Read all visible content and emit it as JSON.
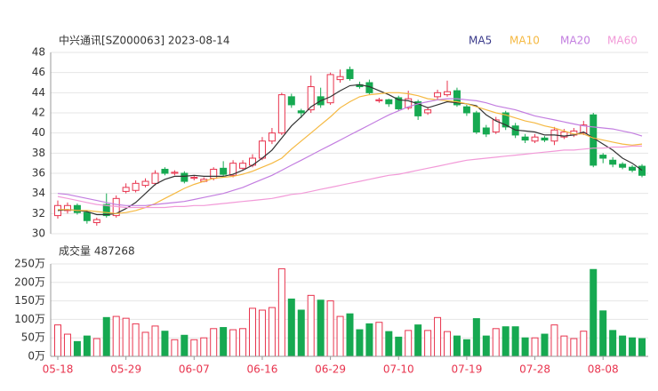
{
  "chart_data": [
    {
      "type": "candlestick",
      "title": "中兴通讯[SZ000063] 2023-08-14",
      "up_color": "#e8344e",
      "down_color": "#16a951",
      "open": [
        31.8,
        32.3,
        32.8,
        32.1,
        31.1,
        32.9,
        31.8,
        34.2,
        34.3,
        34.8,
        35.0,
        36.4,
        36.0,
        36.0,
        35.5,
        35.2,
        35.5,
        36.5,
        35.8,
        36.5,
        36.8,
        37.5,
        39.2,
        40.0,
        43.6,
        42.2,
        42.3,
        43.6,
        43.0,
        45.3,
        46.3,
        44.8,
        45.0,
        43.2,
        43.3,
        43.5,
        42.5,
        43.1,
        42.0,
        43.6,
        43.8,
        44.2,
        42.6,
        42.0,
        40.5,
        40.1,
        42.0,
        40.7,
        39.6,
        39.2,
        39.5,
        39.2,
        39.6,
        39.8,
        40.0,
        41.8,
        37.8,
        37.3,
        36.9,
        36.6,
        36.7
      ],
      "close": [
        32.8,
        32.8,
        32.1,
        31.3,
        31.4,
        31.8,
        33.5,
        34.6,
        35.0,
        35.2,
        36.0,
        36.0,
        36.1,
        35.2,
        35.6,
        35.4,
        36.4,
        35.9,
        37.0,
        37.0,
        37.5,
        39.2,
        40.0,
        43.8,
        42.8,
        42.0,
        44.6,
        42.8,
        45.8,
        45.6,
        45.4,
        44.6,
        44.0,
        43.3,
        42.9,
        42.4,
        43.4,
        41.7,
        42.3,
        44.0,
        44.1,
        42.8,
        42.0,
        40.1,
        39.9,
        41.3,
        40.6,
        39.8,
        39.3,
        39.6,
        39.3,
        40.3,
        40.1,
        40.2,
        40.8,
        36.8,
        37.5,
        36.9,
        36.6,
        36.3,
        35.8
      ],
      "high": [
        33.3,
        33.1,
        33.0,
        32.3,
        31.6,
        34.0,
        33.8,
        35.0,
        35.3,
        35.5,
        36.3,
        36.6,
        36.3,
        36.2,
        35.8,
        35.6,
        36.6,
        37.2,
        37.3,
        37.3,
        37.9,
        39.6,
        40.5,
        44.0,
        43.9,
        42.4,
        45.7,
        44.5,
        46.0,
        46.3,
        46.6,
        45.1,
        45.3,
        43.5,
        43.4,
        43.7,
        44.2,
        43.3,
        42.6,
        44.3,
        45.2,
        44.5,
        42.8,
        42.2,
        40.8,
        41.6,
        42.2,
        41.0,
        39.9,
        39.9,
        39.7,
        40.6,
        40.4,
        40.5,
        41.2,
        42.0,
        38.0,
        37.6,
        37.1,
        36.8,
        36.9
      ],
      "low": [
        31.5,
        32.0,
        31.9,
        31.0,
        30.8,
        31.6,
        31.6,
        34.0,
        34.1,
        34.6,
        34.8,
        35.8,
        35.8,
        35.0,
        35.3,
        35.1,
        35.3,
        35.7,
        35.6,
        36.3,
        36.6,
        37.3,
        38.9,
        39.8,
        42.5,
        41.5,
        42.0,
        42.5,
        42.8,
        45.0,
        45.2,
        44.4,
        43.8,
        43.0,
        42.6,
        42.2,
        42.3,
        41.3,
        41.8,
        43.3,
        43.6,
        42.6,
        41.7,
        39.9,
        39.6,
        39.9,
        40.3,
        39.5,
        39.0,
        39.0,
        39.1,
        38.8,
        39.4,
        39.6,
        39.8,
        36.6,
        37.0,
        36.6,
        36.4,
        36.1,
        35.6
      ],
      "series": [
        {
          "name": "MA5",
          "color": "#333333",
          "values": [
            32.3,
            32.4,
            32.3,
            32.2,
            31.9,
            31.9,
            32.0,
            32.5,
            33.1,
            34.0,
            34.9,
            35.4,
            35.7,
            35.7,
            35.8,
            35.7,
            35.7,
            35.7,
            35.9,
            36.3,
            36.8,
            37.5,
            38.3,
            39.5,
            40.7,
            41.6,
            42.6,
            43.2,
            43.6,
            44.2,
            44.7,
            44.8,
            44.6,
            44.2,
            43.8,
            43.3,
            43.2,
            42.9,
            42.5,
            42.8,
            43.1,
            43.0,
            42.9,
            42.7,
            41.8,
            41.2,
            40.8,
            40.3,
            40.2,
            40.1,
            39.8,
            39.8,
            39.7,
            39.8,
            40.1,
            39.5,
            38.9,
            38.3,
            37.5,
            37.0,
            36.3
          ]
        },
        {
          "name": "MA10",
          "color": "#f5b942",
          "values": [
            32.4,
            32.4,
            32.3,
            32.3,
            32.2,
            32.1,
            32.0,
            32.1,
            32.3,
            32.6,
            33.0,
            33.5,
            34.0,
            34.5,
            34.9,
            35.2,
            35.5,
            35.6,
            35.7,
            35.9,
            36.2,
            36.6,
            37.0,
            37.5,
            38.4,
            39.2,
            40.0,
            40.8,
            41.6,
            42.5,
            43.1,
            43.6,
            43.8,
            43.9,
            44.0,
            44.0,
            43.9,
            43.7,
            43.4,
            43.3,
            43.2,
            43.1,
            42.9,
            42.6,
            42.3,
            42.0,
            41.8,
            41.5,
            41.2,
            41.0,
            40.7,
            40.5,
            40.2,
            39.9,
            39.9,
            39.5,
            39.3,
            39.1,
            38.9,
            38.8,
            38.9
          ]
        },
        {
          "name": "MA20",
          "color": "#c37ee0",
          "values": [
            34.0,
            33.9,
            33.7,
            33.5,
            33.3,
            33.1,
            32.9,
            32.8,
            32.8,
            32.8,
            32.9,
            33.0,
            33.1,
            33.2,
            33.4,
            33.6,
            33.8,
            34.0,
            34.3,
            34.6,
            35.0,
            35.4,
            35.8,
            36.3,
            36.8,
            37.3,
            37.8,
            38.3,
            38.8,
            39.3,
            39.8,
            40.3,
            40.8,
            41.3,
            41.8,
            42.2,
            42.6,
            42.9,
            43.1,
            43.3,
            43.4,
            43.4,
            43.3,
            43.2,
            43.0,
            42.7,
            42.5,
            42.3,
            42.0,
            41.7,
            41.5,
            41.3,
            41.1,
            40.9,
            40.7,
            40.6,
            40.5,
            40.4,
            40.2,
            40.0,
            39.7
          ]
        },
        {
          "name": "MA60",
          "color": "#f29ad8",
          "values": [
            33.7,
            33.5,
            33.3,
            33.1,
            32.9,
            32.8,
            32.7,
            32.6,
            32.6,
            32.6,
            32.6,
            32.6,
            32.7,
            32.7,
            32.8,
            32.8,
            32.9,
            33.0,
            33.1,
            33.2,
            33.3,
            33.4,
            33.5,
            33.7,
            33.9,
            34.0,
            34.2,
            34.4,
            34.6,
            34.8,
            35.0,
            35.2,
            35.4,
            35.6,
            35.8,
            35.9,
            36.1,
            36.3,
            36.5,
            36.7,
            36.9,
            37.1,
            37.3,
            37.4,
            37.5,
            37.6,
            37.7,
            37.8,
            37.9,
            38.0,
            38.1,
            38.2,
            38.3,
            38.3,
            38.4,
            38.5,
            38.5,
            38.6,
            38.6,
            38.7,
            38.7
          ]
        }
      ],
      "ylim": [
        30,
        48
      ],
      "yticks": [
        30,
        32,
        34,
        36,
        38,
        40,
        42,
        44,
        46,
        48
      ],
      "grid": true
    },
    {
      "type": "bar",
      "title": "成交量 487268",
      "categories": [
        "05-18",
        null,
        null,
        null,
        null,
        null,
        null,
        "05-29",
        null,
        null,
        null,
        null,
        null,
        null,
        "06-07",
        null,
        null,
        null,
        null,
        null,
        null,
        "06-16",
        null,
        null,
        null,
        null,
        null,
        null,
        "06-29",
        null,
        null,
        null,
        null,
        null,
        null,
        "07-10",
        null,
        null,
        null,
        null,
        null,
        null,
        "07-19",
        null,
        null,
        null,
        null,
        null,
        null,
        "07-28",
        null,
        null,
        null,
        null,
        null,
        null,
        "08-08",
        null,
        null,
        null,
        null
      ],
      "values": [
        85,
        60,
        40,
        55,
        48,
        105,
        108,
        103,
        88,
        65,
        82,
        68,
        45,
        57,
        45,
        50,
        75,
        78,
        72,
        75,
        130,
        125,
        132,
        237,
        155,
        125,
        165,
        152,
        150,
        108,
        115,
        72,
        88,
        92,
        67,
        52,
        70,
        85,
        70,
        105,
        67,
        55,
        45,
        102,
        55,
        75,
        80,
        80,
        50,
        50,
        60,
        85,
        55,
        48,
        68,
        235,
        123,
        70,
        55,
        50,
        48
      ],
      "ylim": [
        0,
        250
      ],
      "yticks": [
        {
          "value": 0,
          "label": "0万"
        },
        {
          "value": 50,
          "label": "50万"
        },
        {
          "value": 100,
          "label": "100万"
        },
        {
          "value": 150,
          "label": "150万"
        },
        {
          "value": 200,
          "label": "200万"
        },
        {
          "value": 250,
          "label": "250万"
        }
      ],
      "grid": true
    }
  ]
}
